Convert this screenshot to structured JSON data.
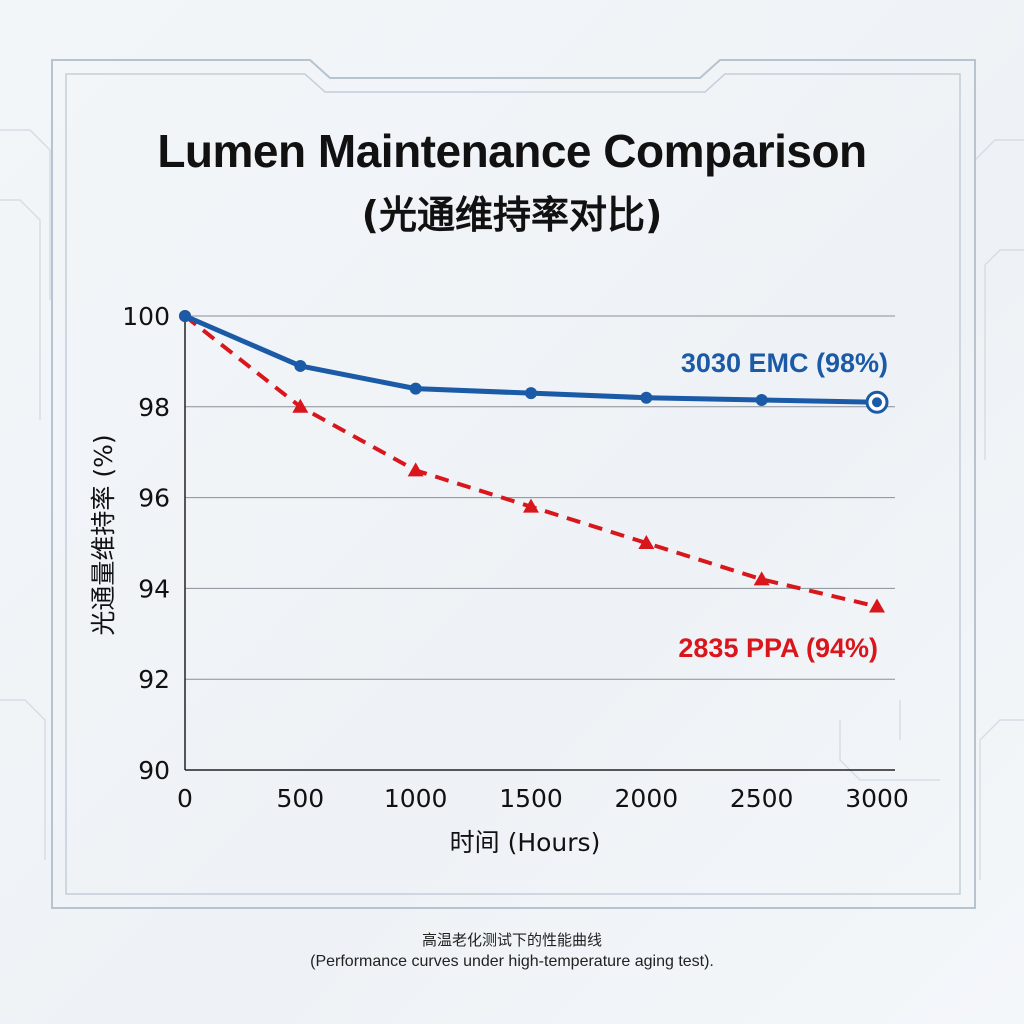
{
  "title": "Lumen Maintenance Comparison",
  "subtitle": "(光通维持率对比)",
  "caption_line1": "高温老化测试下的性能曲线",
  "caption_line2": "(Performance curves under high-temperature aging test).",
  "chart_data": {
    "type": "line",
    "title": "Lumen Maintenance Comparison",
    "xlabel": "时间 (Hours)",
    "ylabel": "光通量维持率 (%)",
    "x": [
      0,
      500,
      1000,
      1500,
      2000,
      2500,
      3000
    ],
    "xticks": [
      "0",
      "500",
      "1000",
      "1500",
      "2000",
      "2500",
      "3000"
    ],
    "yticks": [
      "90",
      "92",
      "94",
      "96",
      "98",
      "100"
    ],
    "xlim": [
      0,
      3000
    ],
    "ylim": [
      90,
      100
    ],
    "grid": "horizontal",
    "series": [
      {
        "name": "3030 EMC (98%)",
        "values": [
          100,
          98.9,
          98.4,
          98.3,
          98.2,
          98.15,
          98.1
        ],
        "color": "#1a5aa6",
        "style": "solid",
        "marker": "circle"
      },
      {
        "name": "2835 PPA (94%)",
        "values": [
          100,
          98.0,
          96.6,
          95.8,
          95.0,
          94.2,
          93.6
        ],
        "color": "#d9161c",
        "style": "dashed",
        "marker": "triangle"
      }
    ]
  }
}
